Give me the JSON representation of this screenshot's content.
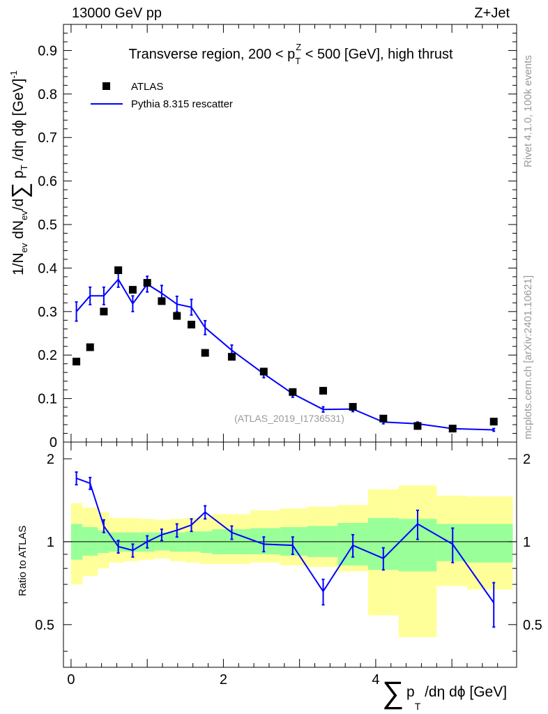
{
  "header": {
    "energy_label": "13000 GeV pp",
    "process_label": "Z+Jet"
  },
  "side": {
    "rivet_label": "Rivet 4.1.0,  100k events",
    "mcplots_label": "mcplots.cern.ch [arXiv:2401.10621]"
  },
  "chart_data": {
    "type": "scatter",
    "title": "Transverse region, 200 < p_T^Z < 500 [GeV], high thrust",
    "analysis_id": "(ATLAS_2019_I1736531)",
    "xlabel": "∑ p_T /dη dϕ [GeV]",
    "ylabel_main": "1/N_ev dN_ev/d∑ p_T /dη dϕ [GeV]^-1",
    "ylabel_ratio": "Ratio to ATLAS",
    "xlim": [
      -0.1,
      5.85
    ],
    "ylim_main": [
      0,
      0.96
    ],
    "ylim_ratio": [
      0.35,
      2.3
    ],
    "x_ticks": [
      "0",
      "2",
      "4"
    ],
    "y_ticks_main": [
      "0",
      "0.1",
      "0.2",
      "0.3",
      "0.4",
      "0.5",
      "0.6",
      "0.7",
      "0.8",
      "0.9"
    ],
    "y_ticks_ratio": [
      "0.5",
      "1",
      "2"
    ],
    "legend": [
      {
        "name": "ATLAS",
        "marker": "square",
        "color": "#000000"
      },
      {
        "name": "Pythia 8.315 rescatter",
        "marker": "line",
        "color": "#0000ff"
      }
    ],
    "bin_edges": [
      0.0,
      0.15,
      0.35,
      0.5,
      0.7,
      0.9,
      1.1,
      1.3,
      1.5,
      1.7,
      1.85,
      2.35,
      2.75,
      3.1,
      3.5,
      3.9,
      4.3,
      4.8,
      5.2,
      5.8
    ],
    "series": [
      {
        "name": "ATLAS",
        "x": [
          0.07,
          0.25,
          0.43,
          0.62,
          0.81,
          1.0,
          1.19,
          1.39,
          1.58,
          1.76,
          2.11,
          2.53,
          2.91,
          3.31,
          3.7,
          4.1,
          4.55,
          5.01,
          5.55
        ],
        "y": [
          0.185,
          0.218,
          0.3,
          0.395,
          0.35,
          0.366,
          0.324,
          0.29,
          0.27,
          0.205,
          0.196,
          0.162,
          0.115,
          0.118,
          0.081,
          0.054,
          0.037,
          0.031,
          0.047
        ]
      },
      {
        "name": "Pythia 8.315 rescatter",
        "x": [
          0.07,
          0.25,
          0.43,
          0.62,
          0.81,
          1.0,
          1.19,
          1.39,
          1.58,
          1.76,
          2.11,
          2.53,
          2.91,
          3.31,
          3.7,
          4.1,
          4.55,
          5.01,
          5.55
        ],
        "y": [
          0.3,
          0.336,
          0.336,
          0.374,
          0.318,
          0.363,
          0.342,
          0.317,
          0.31,
          0.263,
          0.211,
          0.157,
          0.111,
          0.075,
          0.076,
          0.046,
          0.042,
          0.031,
          0.028
        ],
        "err": [
          0.022,
          0.02,
          0.02,
          0.018,
          0.018,
          0.018,
          0.018,
          0.018,
          0.018,
          0.016,
          0.012,
          0.009,
          0.008,
          0.006,
          0.006,
          0.004,
          0.004,
          0.003,
          0.003
        ]
      }
    ],
    "ratio": {
      "x": [
        0.07,
        0.25,
        0.43,
        0.62,
        0.81,
        1.0,
        1.19,
        1.39,
        1.58,
        1.76,
        2.11,
        2.53,
        2.91,
        3.31,
        3.7,
        4.1,
        4.55,
        5.01,
        5.55
      ],
      "y": [
        1.7,
        1.63,
        1.14,
        0.96,
        0.93,
        1.0,
        1.06,
        1.1,
        1.15,
        1.28,
        1.08,
        0.98,
        0.97,
        0.66,
        0.97,
        0.87,
        1.16,
        0.98,
        0.6
      ],
      "err": [
        0.09,
        0.08,
        0.06,
        0.05,
        0.05,
        0.05,
        0.05,
        0.06,
        0.06,
        0.07,
        0.06,
        0.06,
        0.07,
        0.07,
        0.09,
        0.08,
        0.14,
        0.14,
        0.11
      ],
      "band_stat_lo": [
        0.86,
        0.89,
        0.91,
        0.92,
        0.92,
        0.92,
        0.93,
        0.92,
        0.92,
        0.91,
        0.9,
        0.9,
        0.89,
        0.88,
        0.82,
        0.79,
        0.78,
        0.85,
        0.84
      ],
      "band_stat_hi": [
        1.16,
        1.13,
        1.1,
        1.08,
        1.08,
        1.08,
        1.08,
        1.08,
        1.09,
        1.09,
        1.11,
        1.12,
        1.13,
        1.14,
        1.17,
        1.22,
        1.21,
        1.16,
        1.16
      ],
      "band_tot_lo": [
        0.7,
        0.75,
        0.8,
        0.84,
        0.85,
        0.86,
        0.87,
        0.85,
        0.84,
        0.83,
        0.83,
        0.84,
        0.82,
        0.81,
        0.78,
        0.54,
        0.45,
        0.69,
        0.67
      ],
      "band_tot_hi": [
        1.38,
        1.33,
        1.28,
        1.22,
        1.22,
        1.21,
        1.2,
        1.21,
        1.22,
        1.23,
        1.26,
        1.3,
        1.32,
        1.34,
        1.36,
        1.55,
        1.6,
        1.47,
        1.46
      ]
    }
  }
}
